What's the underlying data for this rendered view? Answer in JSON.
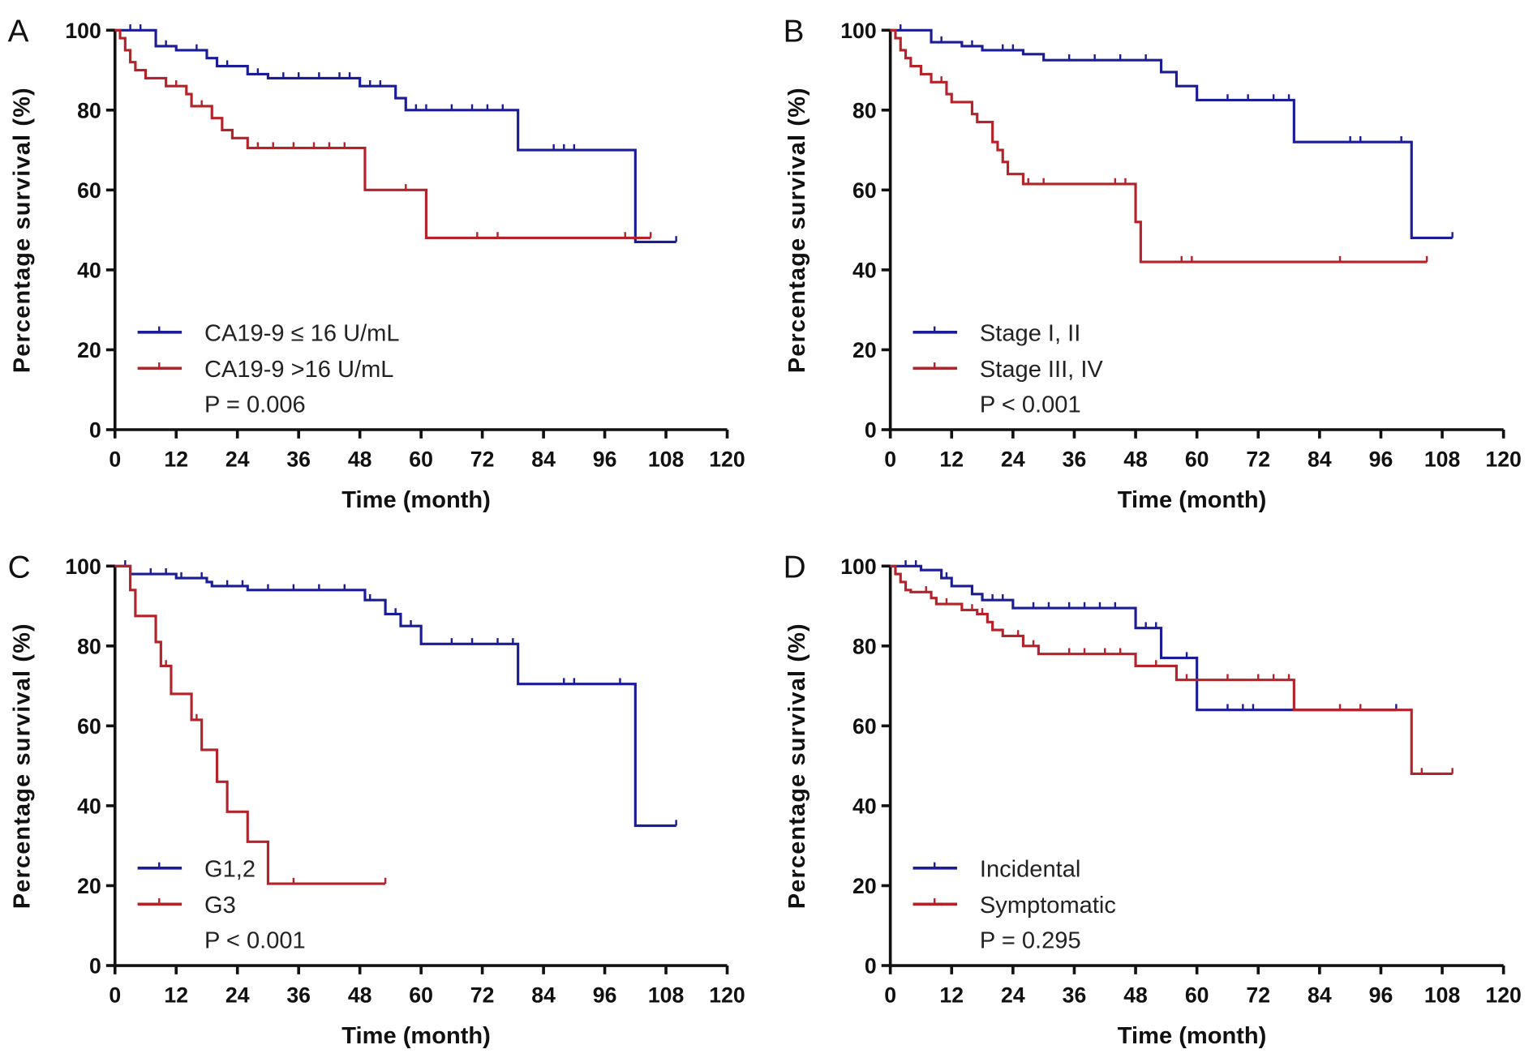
{
  "colors": {
    "blue": "#1b1d96",
    "red": "#b4232a",
    "axis": "#111111"
  },
  "chart_data": [
    {
      "type": "line",
      "subtype": "kaplan-meier",
      "panel": "A",
      "xlabel": "Time (month)",
      "ylabel": "Percentage survival (%)",
      "xlim": [
        0,
        120
      ],
      "ylim": [
        0,
        100
      ],
      "xticks": [
        "0",
        "12",
        "24",
        "36",
        "48",
        "60",
        "72",
        "84",
        "96",
        "108",
        "120"
      ],
      "yticks": [
        "0",
        "20",
        "40",
        "60",
        "80",
        "100"
      ],
      "grid": false,
      "legend_position": "bottom-left",
      "annotation": "P = 0.006",
      "series": [
        {
          "name": "CA19-9 ≤  16 U/mL",
          "color": "blue",
          "steps": [
            [
              0,
              100
            ],
            [
              8,
              96
            ],
            [
              12,
              95
            ],
            [
              18,
              93
            ],
            [
              20,
              91
            ],
            [
              26,
              89
            ],
            [
              30,
              88
            ],
            [
              48,
              86
            ],
            [
              55,
              83
            ],
            [
              57,
              80
            ],
            [
              79,
              70
            ],
            [
              102,
              47
            ]
          ],
          "end": 110,
          "censored": [
            3,
            5,
            10,
            16,
            22,
            28,
            33,
            36,
            40,
            44,
            46,
            50,
            52,
            59,
            61,
            66,
            70,
            73,
            76,
            86,
            88,
            90,
            110
          ]
        },
        {
          "name": "CA19-9 >16 U/mL",
          "color": "red",
          "steps": [
            [
              0,
              100
            ],
            [
              1,
              98
            ],
            [
              2,
              95
            ],
            [
              3,
              92
            ],
            [
              4,
              90
            ],
            [
              6,
              88
            ],
            [
              10,
              86
            ],
            [
              14,
              84
            ],
            [
              15,
              81
            ],
            [
              19,
              78
            ],
            [
              21,
              75
            ],
            [
              23,
              73
            ],
            [
              26,
              70.5
            ],
            [
              49,
              60
            ],
            [
              61,
              48
            ]
          ],
          "end": 105,
          "censored": [
            12,
            17,
            28,
            31,
            35,
            39,
            42,
            45,
            57,
            71,
            75,
            100,
            105
          ]
        }
      ]
    },
    {
      "type": "line",
      "subtype": "kaplan-meier",
      "panel": "B",
      "xlabel": "Time (month)",
      "ylabel": "Percentage survival (%)",
      "xlim": [
        0,
        120
      ],
      "ylim": [
        0,
        100
      ],
      "xticks": [
        "0",
        "12",
        "24",
        "36",
        "48",
        "60",
        "72",
        "84",
        "96",
        "108",
        "120"
      ],
      "yticks": [
        "0",
        "20",
        "40",
        "60",
        "80",
        "100"
      ],
      "grid": false,
      "legend_position": "bottom-left",
      "annotation": "P < 0.001",
      "series": [
        {
          "name": "Stage I, II",
          "color": "blue",
          "steps": [
            [
              0,
              100
            ],
            [
              8,
              97
            ],
            [
              14,
              96
            ],
            [
              18,
              95
            ],
            [
              26,
              94
            ],
            [
              30,
              92.5
            ],
            [
              53,
              89.5
            ],
            [
              56,
              86
            ],
            [
              60,
              82.5
            ],
            [
              79,
              72
            ],
            [
              102,
              48
            ]
          ],
          "end": 110,
          "censored": [
            2,
            10,
            16,
            22,
            24,
            35,
            40,
            45,
            50,
            66,
            70,
            75,
            78,
            90,
            92,
            100,
            110
          ]
        },
        {
          "name": "Stage III, IV",
          "color": "red",
          "steps": [
            [
              0,
              100
            ],
            [
              1,
              98
            ],
            [
              2,
              95
            ],
            [
              3,
              93
            ],
            [
              4,
              91
            ],
            [
              6,
              89
            ],
            [
              8,
              87
            ],
            [
              11,
              84
            ],
            [
              12,
              82
            ],
            [
              16,
              79
            ],
            [
              17,
              77
            ],
            [
              20,
              72
            ],
            [
              21,
              70
            ],
            [
              22,
              67
            ],
            [
              23,
              64
            ],
            [
              26,
              61.5
            ],
            [
              48,
              52
            ],
            [
              49,
              42
            ]
          ],
          "end": 105,
          "censored": [
            10,
            27,
            30,
            44,
            46,
            57,
            59,
            88,
            105
          ]
        }
      ]
    },
    {
      "type": "line",
      "subtype": "kaplan-meier",
      "panel": "C",
      "xlabel": "Time (month)",
      "ylabel": "Percentage survival (%)",
      "xlim": [
        0,
        120
      ],
      "ylim": [
        0,
        100
      ],
      "xticks": [
        "0",
        "12",
        "24",
        "36",
        "48",
        "60",
        "72",
        "84",
        "96",
        "108",
        "120"
      ],
      "yticks": [
        "0",
        "20",
        "40",
        "60",
        "80",
        "100"
      ],
      "grid": false,
      "legend_position": "bottom-left",
      "annotation": "P < 0.001",
      "series": [
        {
          "name": "G1,2",
          "color": "blue",
          "steps": [
            [
              0,
              100
            ],
            [
              3,
              98
            ],
            [
              12,
              97
            ],
            [
              18,
              96
            ],
            [
              19,
              95
            ],
            [
              26,
              94
            ],
            [
              49,
              91.5
            ],
            [
              53,
              88
            ],
            [
              56,
              85
            ],
            [
              60,
              80.5
            ],
            [
              79,
              70.5
            ],
            [
              102,
              35
            ]
          ],
          "end": 110,
          "censored": [
            2,
            7,
            10,
            13,
            17,
            22,
            25,
            30,
            35,
            40,
            45,
            50,
            55,
            58,
            66,
            70,
            75,
            78,
            88,
            90,
            99,
            110
          ]
        },
        {
          "name": "G3",
          "color": "red",
          "steps": [
            [
              0,
              100
            ],
            [
              3,
              94
            ],
            [
              4,
              87.5
            ],
            [
              8,
              81
            ],
            [
              9,
              75
            ],
            [
              11,
              68
            ],
            [
              15,
              61.5
            ],
            [
              17,
              54
            ],
            [
              20,
              46
            ],
            [
              22,
              38.5
            ],
            [
              26,
              31
            ],
            [
              30,
              20.5
            ]
          ],
          "end": 53,
          "censored": [
            10,
            16,
            30,
            35,
            53
          ]
        }
      ]
    },
    {
      "type": "line",
      "subtype": "kaplan-meier",
      "panel": "D",
      "xlabel": "Time (month)",
      "ylabel": "Percentage survival (%)",
      "xlim": [
        0,
        120
      ],
      "ylim": [
        0,
        100
      ],
      "xticks": [
        "0",
        "12",
        "24",
        "36",
        "48",
        "60",
        "72",
        "84",
        "96",
        "108",
        "120"
      ],
      "yticks": [
        "0",
        "20",
        "40",
        "60",
        "80",
        "100"
      ],
      "grid": false,
      "legend_position": "bottom-left",
      "annotation": "P = 0.295",
      "series": [
        {
          "name": "Incidental",
          "color": "blue",
          "steps": [
            [
              0,
              100
            ],
            [
              6,
              99
            ],
            [
              10,
              97
            ],
            [
              12,
              95
            ],
            [
              16,
              93
            ],
            [
              18,
              91.5
            ],
            [
              24,
              89.5
            ],
            [
              48,
              84.5
            ],
            [
              53,
              77
            ],
            [
              60,
              64
            ]
          ],
          "end": 99,
          "censored": [
            3,
            5,
            11,
            16,
            20,
            22,
            28,
            31,
            35,
            38,
            41,
            44,
            50,
            52,
            58,
            66,
            69,
            71,
            99
          ]
        },
        {
          "name": "Symptomatic",
          "color": "red",
          "steps": [
            [
              0,
              100
            ],
            [
              1,
              98
            ],
            [
              2,
              96
            ],
            [
              3,
              94
            ],
            [
              4,
              93.5
            ],
            [
              8,
              92
            ],
            [
              9,
              90.5
            ],
            [
              14,
              89
            ],
            [
              17,
              88
            ],
            [
              19,
              86
            ],
            [
              20,
              84
            ],
            [
              22,
              82.5
            ],
            [
              26,
              80
            ],
            [
              29,
              78
            ],
            [
              48,
              75
            ],
            [
              56,
              71.5
            ],
            [
              79,
              64
            ],
            [
              102,
              48
            ]
          ],
          "end": 110,
          "censored": [
            7,
            11,
            16,
            18,
            25,
            28,
            35,
            38,
            42,
            45,
            52,
            58,
            66,
            72,
            75,
            78,
            88,
            92,
            104,
            110
          ]
        }
      ]
    }
  ]
}
